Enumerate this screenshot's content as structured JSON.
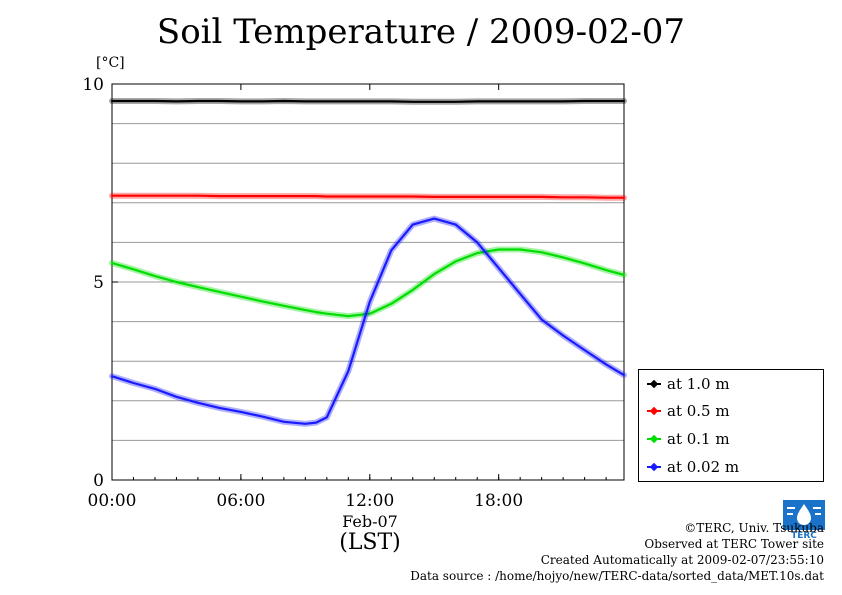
{
  "title": "Soil Temperature / 2009-02-07",
  "unit_label": "[°C]",
  "x_axis": {
    "date_label": "Feb-07",
    "label": "(LST)"
  },
  "credits": {
    "copyright": "©TERC, Univ. Tsukuba",
    "observed": "Observed at TERC Tower site",
    "created": "Created Automatically at 2009-02-07/23:55:10",
    "source": "Data source : /home/hojyo/new/TERC-data/sorted_data/MET.10s.dat"
  },
  "logo": {
    "text": "TERC",
    "color": "#1a73c8"
  },
  "legend": [
    {
      "label": "at 1.0 m",
      "color": "#000000"
    },
    {
      "label": "at 0.5 m",
      "color": "#ff0000"
    },
    {
      "label": "at 0.1 m",
      "color": "#00dd00"
    },
    {
      "label": "at 0.02 m",
      "color": "#1a1aff"
    }
  ],
  "chart_data": {
    "type": "line",
    "title": "Soil Temperature / 2009-02-07",
    "ylabel": "[°C]",
    "xlabel": "(LST)",
    "xlim": [
      "00:00",
      "23:50"
    ],
    "ylim": [
      0,
      10
    ],
    "x_ticks": [
      "00:00",
      "06:00",
      "12:00",
      "18:00"
    ],
    "y_ticks": [
      "0",
      "5",
      "10"
    ],
    "grid": true,
    "legend_position": "bottom-right",
    "x": [
      "00:00",
      "01:00",
      "02:00",
      "03:00",
      "04:00",
      "05:00",
      "06:00",
      "07:00",
      "08:00",
      "09:00",
      "09:30",
      "10:00",
      "11:00",
      "12:00",
      "13:00",
      "14:00",
      "15:00",
      "16:00",
      "17:00",
      "18:00",
      "19:00",
      "20:00",
      "21:00",
      "22:00",
      "23:00",
      "23:50"
    ],
    "series": [
      {
        "name": "at 1.0 m",
        "color": "#000000",
        "values": [
          9.57,
          9.57,
          9.57,
          9.56,
          9.57,
          9.57,
          9.56,
          9.56,
          9.57,
          9.56,
          9.56,
          9.56,
          9.56,
          9.56,
          9.56,
          9.55,
          9.55,
          9.55,
          9.56,
          9.56,
          9.56,
          9.56,
          9.56,
          9.57,
          9.57,
          9.57
        ]
      },
      {
        "name": "at 0.5 m",
        "color": "#ff0000",
        "values": [
          7.18,
          7.18,
          7.18,
          7.18,
          7.18,
          7.17,
          7.17,
          7.17,
          7.17,
          7.17,
          7.17,
          7.16,
          7.16,
          7.16,
          7.16,
          7.16,
          7.15,
          7.15,
          7.15,
          7.15,
          7.15,
          7.15,
          7.14,
          7.14,
          7.13,
          7.13
        ]
      },
      {
        "name": "at 0.1 m",
        "color": "#00dd00",
        "values": [
          5.48,
          5.32,
          5.15,
          5.0,
          4.87,
          4.75,
          4.63,
          4.51,
          4.4,
          4.29,
          4.24,
          4.2,
          4.14,
          4.2,
          4.45,
          4.8,
          5.2,
          5.52,
          5.73,
          5.82,
          5.82,
          5.75,
          5.62,
          5.47,
          5.3,
          5.18
        ]
      },
      {
        "name": "at 0.02 m",
        "color": "#1a1aff",
        "values": [
          2.62,
          2.45,
          2.3,
          2.1,
          1.95,
          1.82,
          1.72,
          1.6,
          1.47,
          1.42,
          1.45,
          1.58,
          2.75,
          4.5,
          5.8,
          6.45,
          6.6,
          6.45,
          6.0,
          5.35,
          4.7,
          4.05,
          3.65,
          3.28,
          2.92,
          2.65
        ]
      }
    ]
  }
}
